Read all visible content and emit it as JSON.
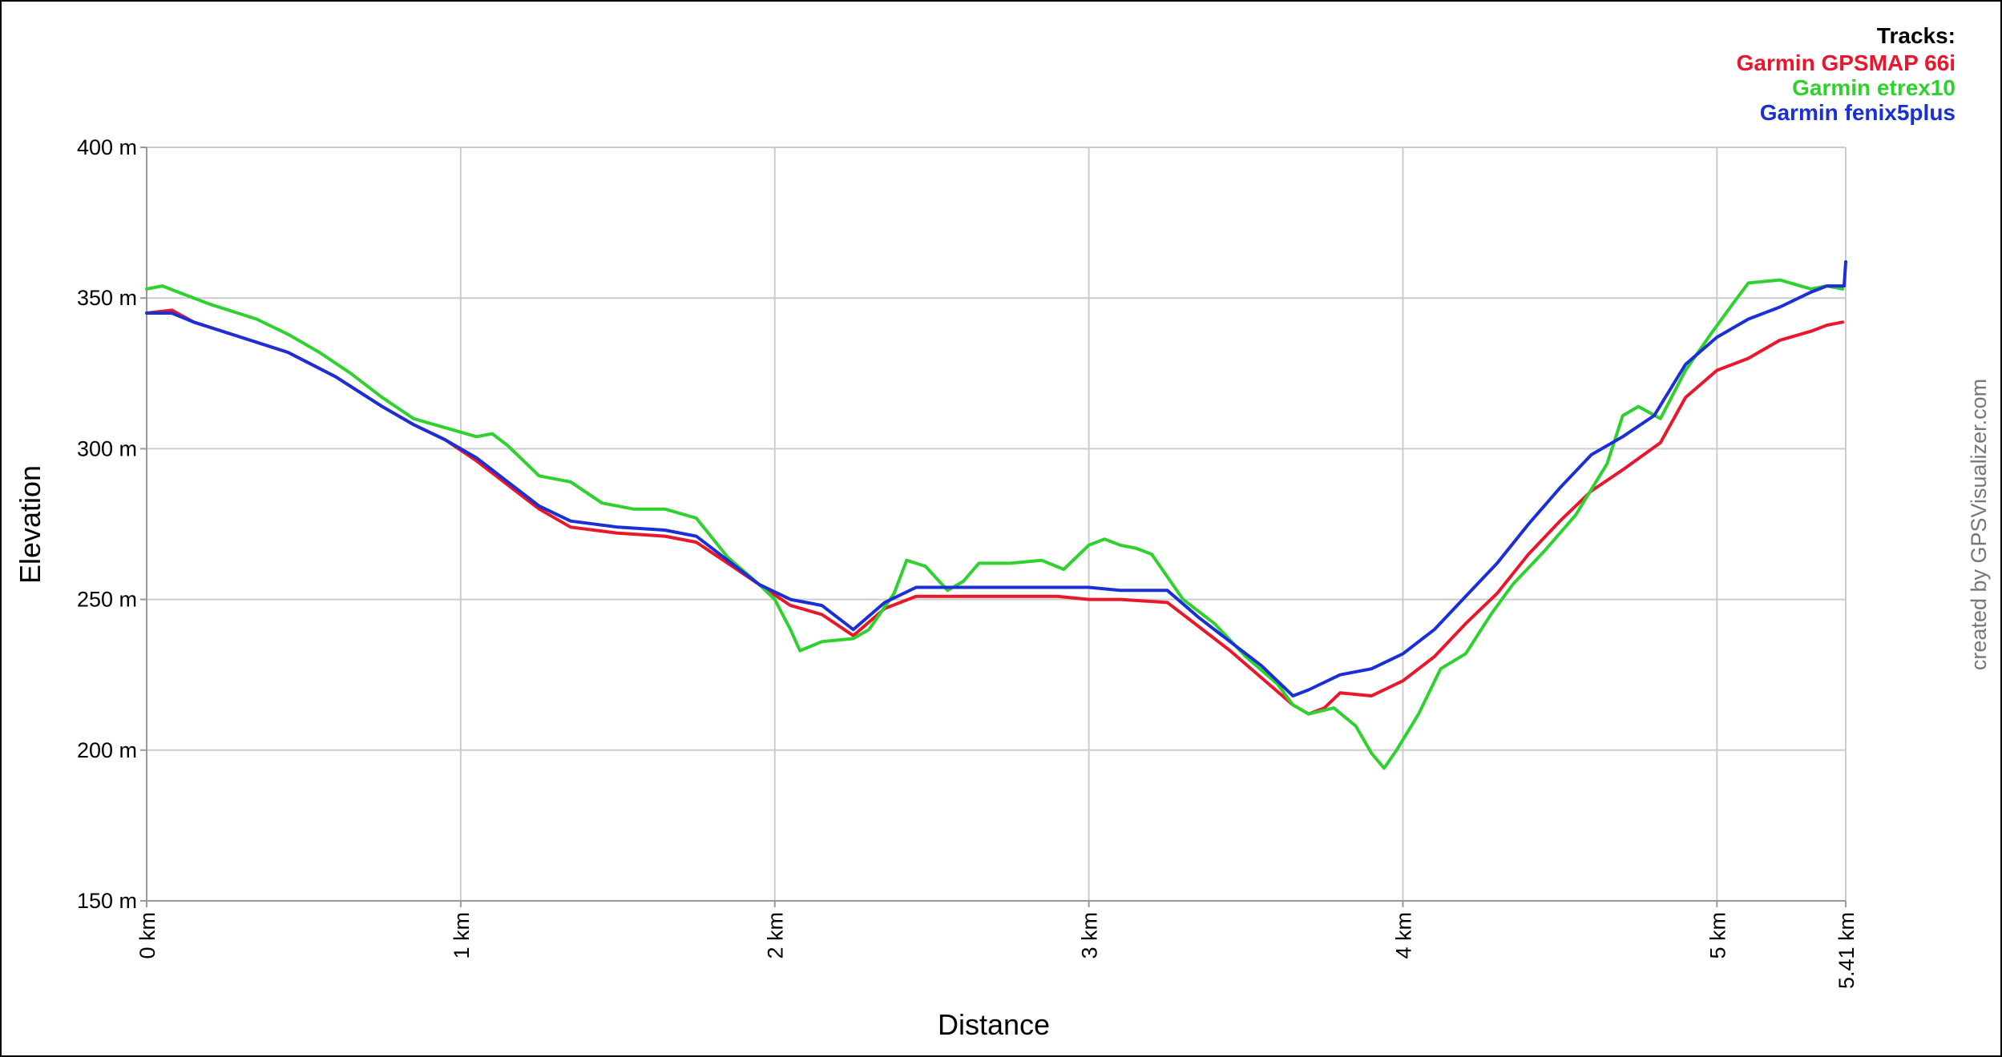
{
  "chart_data": {
    "type": "line",
    "title": "",
    "xlabel": "Distance",
    "ylabel": "Elevation",
    "xlim": [
      0,
      5.41
    ],
    "ylim": [
      150,
      400
    ],
    "x_ticks": [
      {
        "value": 0,
        "label": "0 km"
      },
      {
        "value": 1,
        "label": "1 km"
      },
      {
        "value": 2,
        "label": "2 km"
      },
      {
        "value": 3,
        "label": "3 km"
      },
      {
        "value": 4,
        "label": "4 km"
      },
      {
        "value": 5,
        "label": "5 km"
      },
      {
        "value": 5.41,
        "label": "5.41 km"
      }
    ],
    "y_ticks": [
      {
        "value": 150,
        "label": "150 m"
      },
      {
        "value": 200,
        "label": "200 m"
      },
      {
        "value": 250,
        "label": "250 m"
      },
      {
        "value": 300,
        "label": "300 m"
      },
      {
        "value": 350,
        "label": "350 m"
      },
      {
        "value": 400,
        "label": "400 m"
      }
    ],
    "grid": true,
    "legend": {
      "title": "Tracks:",
      "placement": "top-right"
    },
    "credit": "created by GPSVisualizer.com",
    "series": [
      {
        "name": "Garmin GPSMAP 66i",
        "color": "#e8172b",
        "points": [
          [
            0,
            345
          ],
          [
            0.08,
            346
          ],
          [
            0.15,
            342
          ],
          [
            0.3,
            337
          ],
          [
            0.45,
            332
          ],
          [
            0.6,
            324
          ],
          [
            0.75,
            314
          ],
          [
            0.85,
            308
          ],
          [
            0.95,
            303
          ],
          [
            1.05,
            296
          ],
          [
            1.15,
            288
          ],
          [
            1.25,
            280
          ],
          [
            1.35,
            274
          ],
          [
            1.5,
            272
          ],
          [
            1.65,
            271
          ],
          [
            1.75,
            269
          ],
          [
            1.85,
            262
          ],
          [
            1.95,
            255
          ],
          [
            2.05,
            248
          ],
          [
            2.15,
            245
          ],
          [
            2.25,
            238
          ],
          [
            2.35,
            247
          ],
          [
            2.45,
            251
          ],
          [
            2.6,
            251
          ],
          [
            2.8,
            251
          ],
          [
            2.9,
            251
          ],
          [
            3.0,
            250
          ],
          [
            3.1,
            250
          ],
          [
            3.25,
            249
          ],
          [
            3.35,
            241
          ],
          [
            3.45,
            233
          ],
          [
            3.55,
            224
          ],
          [
            3.65,
            215
          ],
          [
            3.7,
            212
          ],
          [
            3.75,
            214
          ],
          [
            3.8,
            219
          ],
          [
            3.9,
            218
          ],
          [
            4.0,
            223
          ],
          [
            4.1,
            231
          ],
          [
            4.2,
            242
          ],
          [
            4.3,
            252
          ],
          [
            4.4,
            265
          ],
          [
            4.5,
            276
          ],
          [
            4.6,
            286
          ],
          [
            4.7,
            293
          ],
          [
            4.82,
            302
          ],
          [
            4.9,
            317
          ],
          [
            5.0,
            326
          ],
          [
            5.1,
            330
          ],
          [
            5.2,
            336
          ],
          [
            5.3,
            339
          ],
          [
            5.35,
            341
          ],
          [
            5.4,
            342
          ]
        ]
      },
      {
        "name": "Garmin etrex10",
        "color": "#2ed12e",
        "points": [
          [
            0,
            353
          ],
          [
            0.05,
            354
          ],
          [
            0.1,
            352
          ],
          [
            0.2,
            348
          ],
          [
            0.35,
            343
          ],
          [
            0.45,
            338
          ],
          [
            0.55,
            332
          ],
          [
            0.65,
            325
          ],
          [
            0.75,
            317
          ],
          [
            0.85,
            310
          ],
          [
            0.95,
            307
          ],
          [
            1.05,
            304
          ],
          [
            1.1,
            305
          ],
          [
            1.15,
            301
          ],
          [
            1.25,
            291
          ],
          [
            1.35,
            289
          ],
          [
            1.45,
            282
          ],
          [
            1.55,
            280
          ],
          [
            1.65,
            280
          ],
          [
            1.75,
            277
          ],
          [
            1.85,
            264
          ],
          [
            1.95,
            255
          ],
          [
            2.0,
            250
          ],
          [
            2.05,
            240
          ],
          [
            2.08,
            233
          ],
          [
            2.15,
            236
          ],
          [
            2.25,
            237
          ],
          [
            2.3,
            240
          ],
          [
            2.38,
            252
          ],
          [
            2.42,
            263
          ],
          [
            2.48,
            261
          ],
          [
            2.55,
            253
          ],
          [
            2.6,
            256
          ],
          [
            2.65,
            262
          ],
          [
            2.75,
            262
          ],
          [
            2.85,
            263
          ],
          [
            2.92,
            260
          ],
          [
            3.0,
            268
          ],
          [
            3.05,
            270
          ],
          [
            3.1,
            268
          ],
          [
            3.15,
            267
          ],
          [
            3.2,
            265
          ],
          [
            3.3,
            250
          ],
          [
            3.4,
            242
          ],
          [
            3.5,
            231
          ],
          [
            3.6,
            222
          ],
          [
            3.65,
            215
          ],
          [
            3.7,
            212
          ],
          [
            3.78,
            214
          ],
          [
            3.85,
            208
          ],
          [
            3.9,
            199
          ],
          [
            3.94,
            194
          ],
          [
            3.98,
            200
          ],
          [
            4.05,
            212
          ],
          [
            4.12,
            227
          ],
          [
            4.2,
            232
          ],
          [
            4.28,
            245
          ],
          [
            4.35,
            255
          ],
          [
            4.45,
            266
          ],
          [
            4.55,
            278
          ],
          [
            4.65,
            295
          ],
          [
            4.7,
            311
          ],
          [
            4.75,
            314
          ],
          [
            4.82,
            310
          ],
          [
            4.9,
            326
          ],
          [
            4.98,
            338
          ],
          [
            5.05,
            348
          ],
          [
            5.1,
            355
          ],
          [
            5.2,
            356
          ],
          [
            5.3,
            353
          ],
          [
            5.35,
            354
          ],
          [
            5.4,
            353
          ]
        ]
      },
      {
        "name": "Garmin fenix5plus",
        "color": "#1a2fd6",
        "points": [
          [
            0,
            345
          ],
          [
            0.08,
            345
          ],
          [
            0.15,
            342
          ],
          [
            0.3,
            337
          ],
          [
            0.45,
            332
          ],
          [
            0.6,
            324
          ],
          [
            0.75,
            314
          ],
          [
            0.85,
            308
          ],
          [
            0.95,
            303
          ],
          [
            1.05,
            297
          ],
          [
            1.15,
            289
          ],
          [
            1.25,
            281
          ],
          [
            1.35,
            276
          ],
          [
            1.5,
            274
          ],
          [
            1.65,
            273
          ],
          [
            1.75,
            271
          ],
          [
            1.85,
            263
          ],
          [
            1.95,
            255
          ],
          [
            2.05,
            250
          ],
          [
            2.15,
            248
          ],
          [
            2.25,
            240
          ],
          [
            2.35,
            249
          ],
          [
            2.45,
            254
          ],
          [
            2.6,
            254
          ],
          [
            2.8,
            254
          ],
          [
            3.0,
            254
          ],
          [
            3.1,
            253
          ],
          [
            3.25,
            253
          ],
          [
            3.35,
            244
          ],
          [
            3.45,
            236
          ],
          [
            3.55,
            228
          ],
          [
            3.65,
            218
          ],
          [
            3.7,
            220
          ],
          [
            3.8,
            225
          ],
          [
            3.9,
            227
          ],
          [
            4.0,
            232
          ],
          [
            4.1,
            240
          ],
          [
            4.2,
            251
          ],
          [
            4.3,
            262
          ],
          [
            4.4,
            275
          ],
          [
            4.5,
            287
          ],
          [
            4.6,
            298
          ],
          [
            4.7,
            304
          ],
          [
            4.8,
            311
          ],
          [
            4.9,
            328
          ],
          [
            5.0,
            337
          ],
          [
            5.1,
            343
          ],
          [
            5.2,
            347
          ],
          [
            5.3,
            352
          ],
          [
            5.35,
            354
          ],
          [
            5.405,
            354
          ],
          [
            5.41,
            362
          ]
        ]
      }
    ]
  }
}
